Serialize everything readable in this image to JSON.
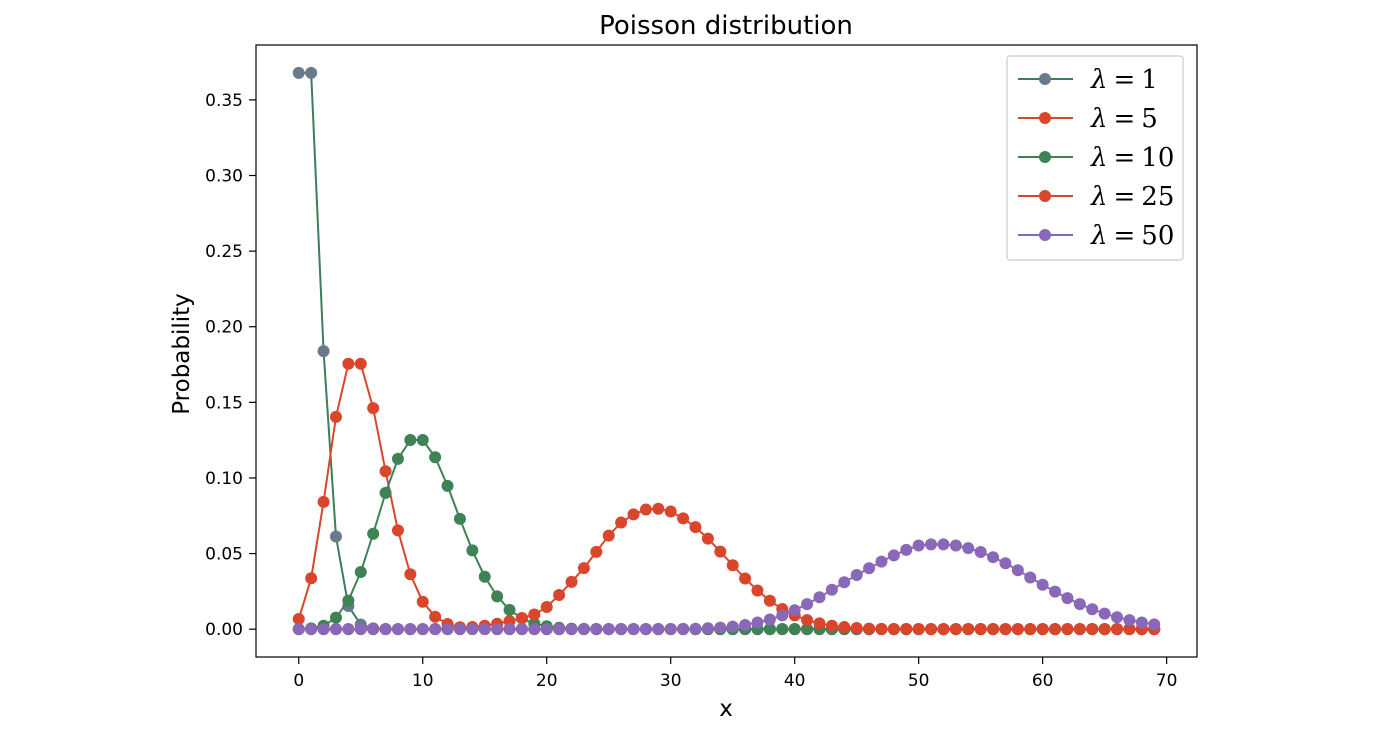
{
  "chart_data": {
    "type": "line",
    "title": "Poisson distribution",
    "xlabel": "x",
    "ylabel": "Probability",
    "xlim": [
      -3.45,
      72.45
    ],
    "ylim": [
      -0.0184,
      0.3863
    ],
    "xticks": [
      0,
      10,
      20,
      30,
      40,
      50,
      60,
      70
    ],
    "xtick_labels": [
      "0",
      "10",
      "20",
      "30",
      "40",
      "50",
      "60",
      "70"
    ],
    "yticks": [
      0.0,
      0.05,
      0.1,
      0.15,
      0.2,
      0.25,
      0.3,
      0.35
    ],
    "ytick_labels": [
      "0.00",
      "0.05",
      "0.10",
      "0.15",
      "0.20",
      "0.25",
      "0.30",
      "0.35"
    ],
    "grid": false,
    "legend_position": "top-right",
    "x": [
      0,
      1,
      2,
      3,
      4,
      5,
      6,
      7,
      8,
      9,
      10,
      11,
      12,
      13,
      14,
      15,
      16,
      17,
      18,
      19,
      20,
      21,
      22,
      23,
      24,
      25,
      26,
      27,
      28,
      29,
      30,
      31,
      32,
      33,
      34,
      35,
      36,
      37,
      38,
      39,
      40,
      41,
      42,
      43,
      44,
      45,
      46,
      47,
      48,
      49,
      50,
      51,
      52,
      53,
      54,
      55,
      56,
      57,
      58,
      59,
      60,
      61,
      62,
      63,
      64,
      65,
      66,
      67,
      68,
      69
    ],
    "series": [
      {
        "name": "λ = 1",
        "lambda_symbol": "λ",
        "lambda_value": "1",
        "line_color": "#3e7d5a",
        "marker_color": "#697a8c",
        "values": [
          0.3679,
          0.3679,
          0.1839,
          0.0613,
          0.0153,
          0.0031,
          0.0005,
          0.0001,
          0.0,
          0.0,
          0.0,
          0.0,
          0.0,
          0.0,
          0.0,
          0.0,
          0.0,
          0.0,
          0.0,
          0.0,
          0.0,
          0.0,
          0.0,
          0.0,
          0.0,
          0.0,
          0.0,
          0.0,
          0.0,
          0.0,
          0.0,
          0.0,
          0.0,
          0.0,
          0.0,
          0.0,
          0.0,
          0.0,
          0.0,
          0.0,
          0.0,
          0.0,
          0.0,
          0.0,
          0.0,
          0.0,
          0.0,
          0.0,
          0.0,
          0.0,
          0.0,
          0.0,
          0.0,
          0.0,
          0.0,
          0.0,
          0.0,
          0.0,
          0.0,
          0.0,
          0.0,
          0.0,
          0.0,
          0.0,
          0.0,
          0.0,
          0.0,
          0.0,
          0.0,
          0.0
        ]
      },
      {
        "name": "λ = 5",
        "lambda_symbol": "λ",
        "lambda_value": "5",
        "line_color": "#d9462b",
        "marker_color": "#d9462b",
        "values": [
          0.0067,
          0.0337,
          0.0842,
          0.1404,
          0.1755,
          0.1755,
          0.1462,
          0.1044,
          0.0653,
          0.0363,
          0.0181,
          0.0082,
          0.0034,
          0.0013,
          0.0005,
          0.0002,
          0.0,
          0.0,
          0.0,
          0.0,
          0.0,
          0.0,
          0.0,
          0.0,
          0.0,
          0.0,
          0.0,
          0.0,
          0.0,
          0.0,
          0.0,
          0.0,
          0.0,
          0.0,
          0.0,
          0.0,
          0.0,
          0.0,
          0.0,
          0.0,
          0.0,
          0.0,
          0.0,
          0.0,
          0.0,
          0.0,
          0.0,
          0.0,
          0.0,
          0.0,
          0.0,
          0.0,
          0.0,
          0.0,
          0.0,
          0.0,
          0.0,
          0.0,
          0.0,
          0.0,
          0.0,
          0.0,
          0.0,
          0.0,
          0.0,
          0.0,
          0.0,
          0.0,
          0.0,
          0.0
        ]
      },
      {
        "name": "λ = 10",
        "lambda_symbol": "λ",
        "lambda_value": "10",
        "line_color": "#3e8256",
        "marker_color": "#3e8256",
        "values": [
          0.0,
          0.0005,
          0.0023,
          0.0076,
          0.0189,
          0.0378,
          0.0631,
          0.0901,
          0.1126,
          0.1251,
          0.1251,
          0.1137,
          0.0948,
          0.0729,
          0.0521,
          0.0347,
          0.0217,
          0.0128,
          0.0071,
          0.0037,
          0.0019,
          0.0009,
          0.0004,
          0.0002,
          0.0001,
          0.0,
          0.0,
          0.0,
          0.0,
          0.0,
          0.0,
          0.0,
          0.0,
          0.0,
          0.0,
          0.0,
          0.0,
          0.0,
          0.0,
          0.0,
          0.0,
          0.0,
          0.0,
          0.0,
          0.0,
          0.0,
          0.0,
          0.0,
          0.0,
          0.0,
          0.0,
          0.0,
          0.0,
          0.0,
          0.0,
          0.0,
          0.0,
          0.0,
          0.0,
          0.0,
          0.0,
          0.0,
          0.0,
          0.0,
          0.0,
          0.0,
          0.0,
          0.0,
          0.0,
          0.0
        ]
      },
      {
        "name": "λ = 25",
        "lambda_symbol": "λ",
        "lambda_value": "25",
        "line_color": "#d9462b",
        "marker_color": "#d9462b",
        "values": [
          0.0,
          0.0,
          0.0,
          0.0,
          0.0,
          0.0,
          0.0,
          0.0,
          0.0,
          0.0,
          0.0,
          0.0001,
          0.0004,
          0.0008,
          0.0014,
          0.0023,
          0.0036,
          0.0053,
          0.0074,
          0.0097,
          0.0147,
          0.0226,
          0.0313,
          0.0404,
          0.0511,
          0.0619,
          0.0705,
          0.0759,
          0.0791,
          0.0796,
          0.0778,
          0.0733,
          0.0675,
          0.0599,
          0.0513,
          0.0423,
          0.0335,
          0.0256,
          0.0188,
          0.0133,
          0.0091,
          0.006,
          0.0038,
          0.0023,
          0.0014,
          0.0008,
          0.0004,
          0.0002,
          0.0001,
          0.0001,
          0.0,
          0.0,
          0.0,
          0.0,
          0.0,
          0.0,
          0.0,
          0.0,
          0.0,
          0.0,
          0.0,
          0.0,
          0.0,
          0.0,
          0.0,
          0.0,
          0.0,
          0.0,
          0.0,
          0.0
        ]
      },
      {
        "name": "λ = 50",
        "lambda_symbol": "λ",
        "lambda_value": "50",
        "line_color": "#8a68b8",
        "marker_color": "#8a68b8",
        "values": [
          0.0,
          0.0,
          0.0,
          0.0,
          0.0,
          0.0,
          0.0,
          0.0,
          0.0,
          0.0,
          0.0,
          0.0,
          0.0,
          0.0,
          0.0,
          0.0,
          0.0,
          0.0,
          0.0,
          0.0,
          0.0,
          0.0,
          0.0,
          0.0,
          0.0,
          0.0,
          0.0,
          0.0,
          0.0,
          0.0,
          0.0001,
          0.0002,
          0.0003,
          0.0006,
          0.001,
          0.0017,
          0.0028,
          0.0044,
          0.0064,
          0.0091,
          0.0125,
          0.0166,
          0.0211,
          0.0261,
          0.031,
          0.0358,
          0.0403,
          0.0447,
          0.0488,
          0.0524,
          0.0553,
          0.0561,
          0.0561,
          0.0553,
          0.0536,
          0.051,
          0.0476,
          0.0436,
          0.039,
          0.0342,
          0.0294,
          0.0248,
          0.0205,
          0.0166,
          0.0132,
          0.0103,
          0.0079,
          0.006,
          0.0044,
          0.0032
        ]
      }
    ]
  }
}
